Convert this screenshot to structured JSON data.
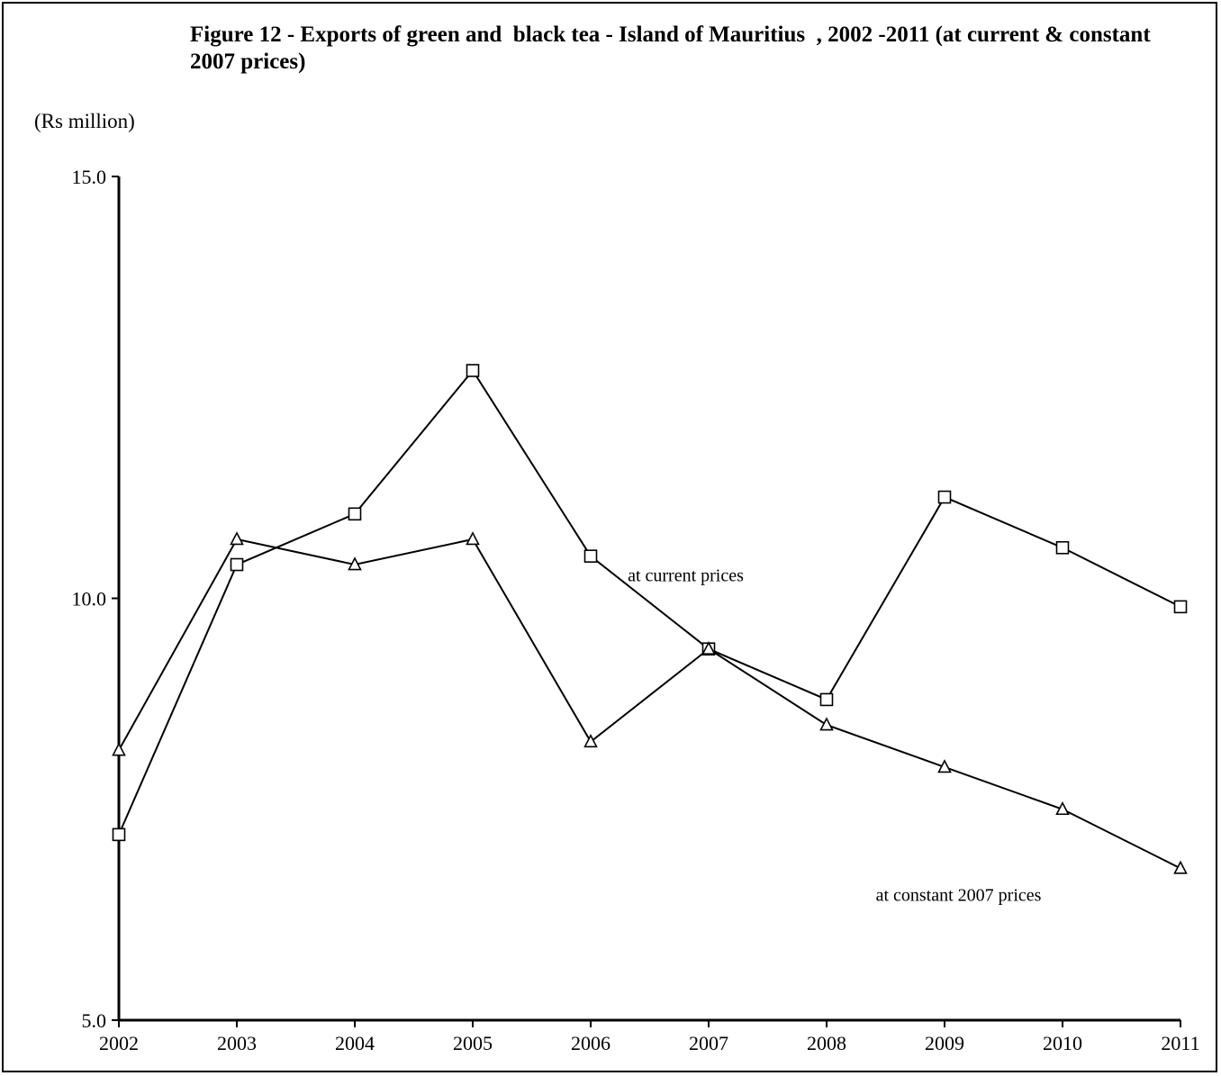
{
  "chart_data": {
    "type": "line",
    "title": "Figure 12 - Exports of green and  black tea - Island of Mauritius  , 2002 -2011 (at current & constant 2007 prices)",
    "ylabel": "(Rs million)",
    "xlabel": "",
    "ylim": [
      5.0,
      15.0
    ],
    "yticks": [
      "5.0",
      "10.0",
      "15.0"
    ],
    "categories": [
      "2002",
      "2003",
      "2004",
      "2005",
      "2006",
      "2007",
      "2008",
      "2009",
      "2010",
      "2011"
    ],
    "series": [
      {
        "name": "at current prices",
        "marker": "square",
        "values": [
          7.2,
          10.4,
          11.0,
          12.7,
          10.5,
          9.4,
          8.8,
          11.2,
          10.6,
          9.9
        ]
      },
      {
        "name": "at constant 2007 prices",
        "marker": "triangle",
        "values": [
          8.2,
          10.7,
          10.4,
          10.7,
          8.3,
          9.4,
          8.5,
          8.0,
          7.5,
          6.8
        ]
      }
    ],
    "grid": false,
    "legend": "inline labels"
  }
}
